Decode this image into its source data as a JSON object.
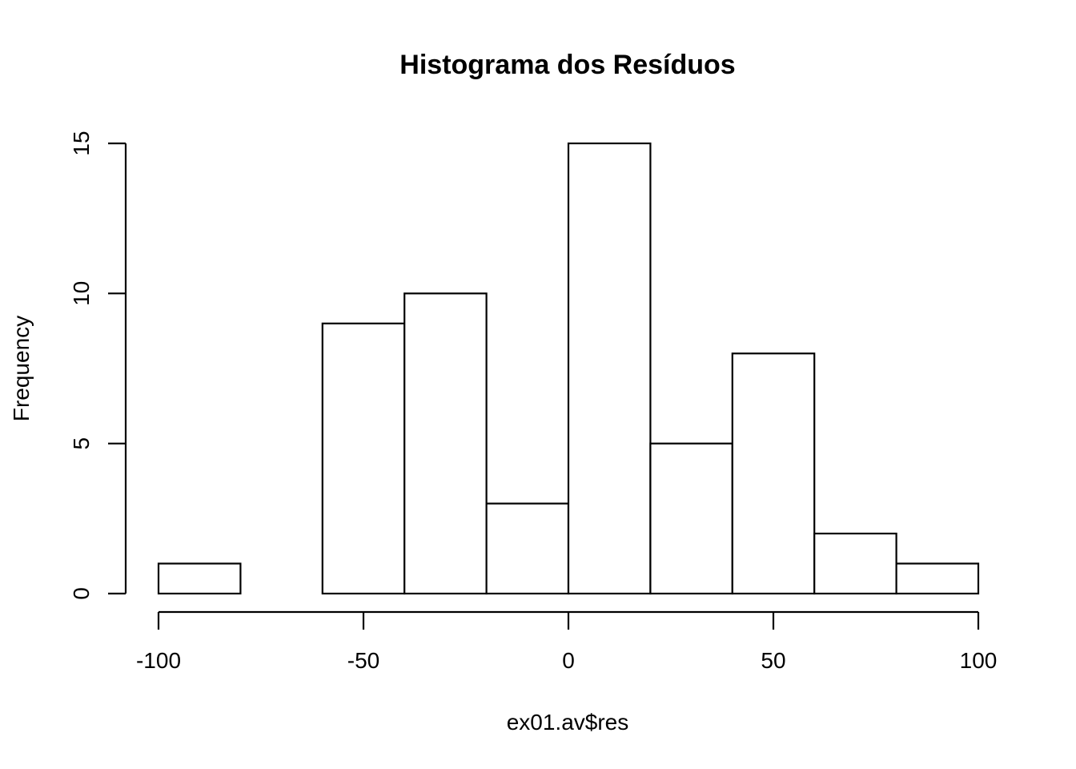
{
  "chart_data": {
    "type": "bar",
    "title": "Histograma dos Resíduos",
    "xlabel": "ex01.av$res",
    "ylabel": "Frequency",
    "xlim": [
      -100,
      100
    ],
    "ylim": [
      0,
      15
    ],
    "bins": [
      {
        "start": -100,
        "end": -80,
        "count": 1
      },
      {
        "start": -80,
        "end": -60,
        "count": 0
      },
      {
        "start": -60,
        "end": -40,
        "count": 9
      },
      {
        "start": -40,
        "end": -20,
        "count": 10
      },
      {
        "start": -20,
        "end": 0,
        "count": 3
      },
      {
        "start": 0,
        "end": 20,
        "count": 15
      },
      {
        "start": 20,
        "end": 40,
        "count": 5
      },
      {
        "start": 40,
        "end": 60,
        "count": 8
      },
      {
        "start": 60,
        "end": 80,
        "count": 2
      },
      {
        "start": 80,
        "end": 100,
        "count": 1
      }
    ],
    "x_ticks": [
      -100,
      -50,
      0,
      50,
      100
    ],
    "x_tick_labels": [
      "-100",
      "-50",
      "0",
      "50",
      "100"
    ],
    "y_ticks": [
      0,
      5,
      10,
      15
    ],
    "y_tick_labels": [
      "0",
      "5",
      "10",
      "15"
    ],
    "grid": false,
    "bar_fill": "#ffffff",
    "bar_stroke": "#000000"
  }
}
